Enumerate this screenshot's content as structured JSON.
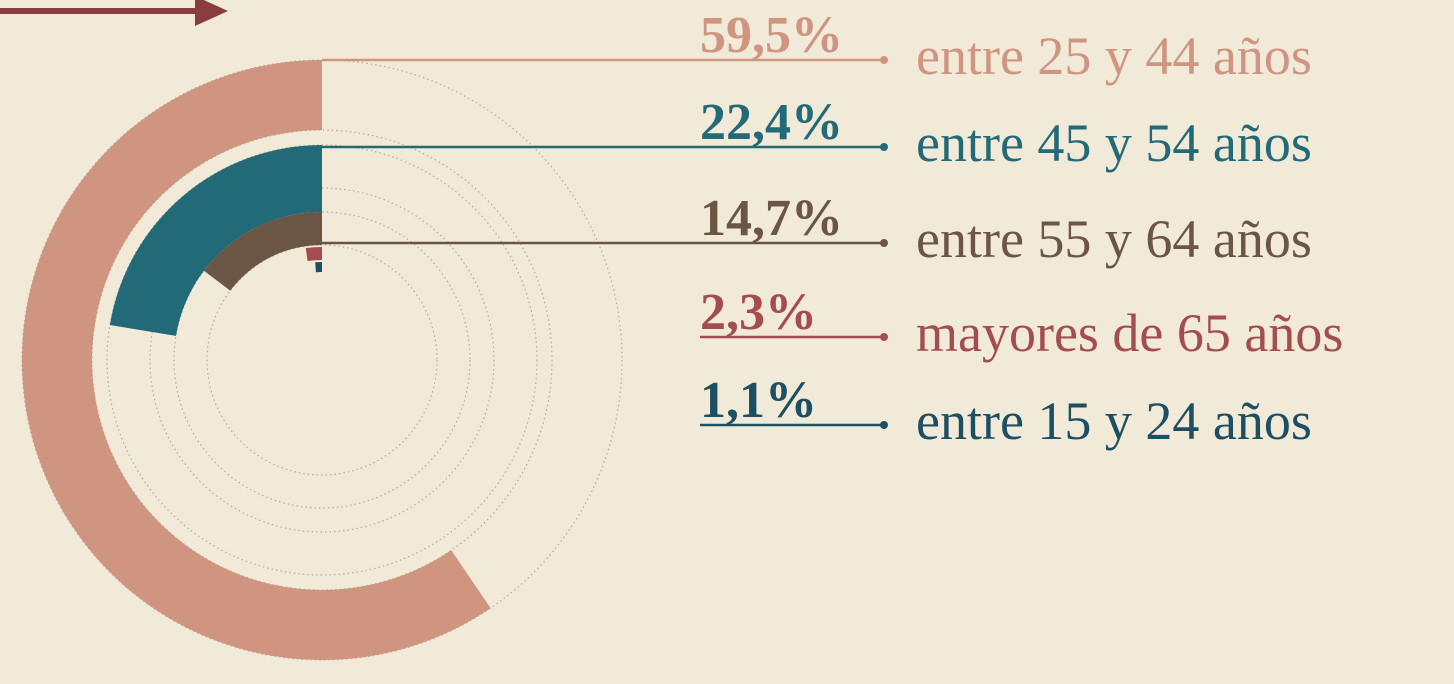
{
  "chart_data": {
    "type": "radial",
    "categories": [
      "entre 25 y 44 años",
      "entre 45 y 54 años",
      "entre 55 y 64 años",
      "mayores de 65 años",
      "entre 15 y 24 años"
    ],
    "values": [
      59.5,
      22.4,
      14.7,
      2.3,
      1.1
    ],
    "value_labels": [
      "59,5%",
      "22,4%",
      "14,7%",
      "2,3%",
      "1,1%"
    ],
    "colors": [
      "#cf9580",
      "#236a78",
      "#6b5544",
      "#a34d4e",
      "#1d4f62"
    ]
  }
}
